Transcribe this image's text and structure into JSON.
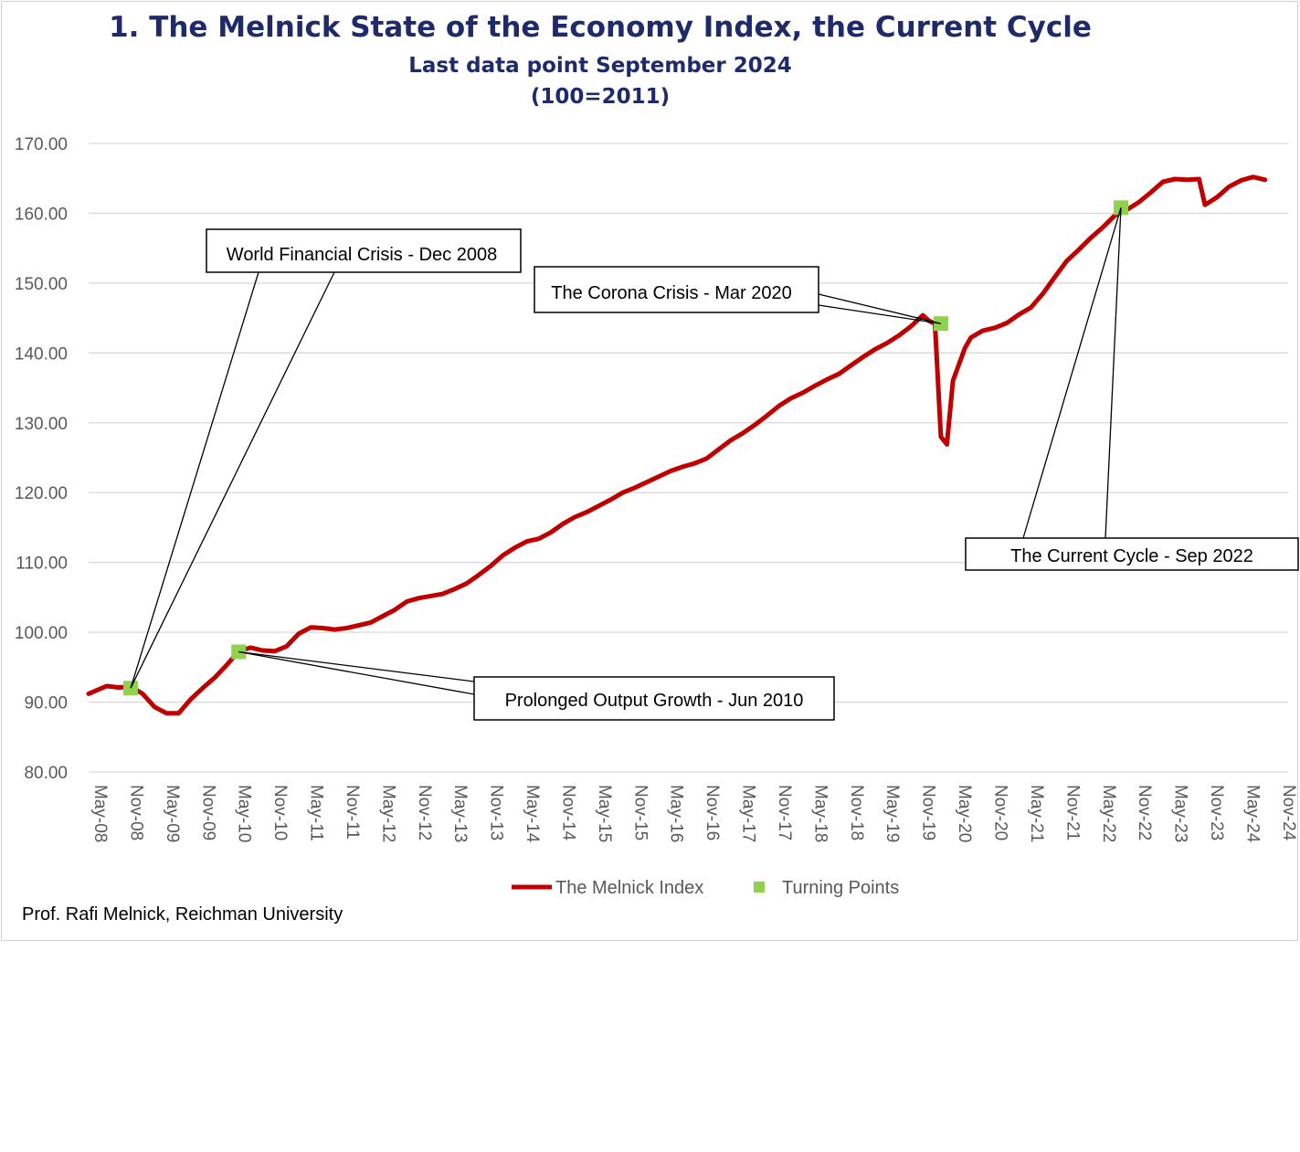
{
  "chart_data": {
    "type": "line",
    "title": "1.  The Melnick State of the Economy Index, the Current Cycle",
    "subtitle": "Last data point September 2024",
    "subtitle2": "(100=2011)",
    "credit": "Prof. Rafi Melnick, Reichman University",
    "ylim": [
      80,
      170
    ],
    "yticks": [
      "80.00",
      "90.00",
      "100.00",
      "110.00",
      "120.00",
      "130.00",
      "140.00",
      "150.00",
      "160.00",
      "170.00"
    ],
    "grid": true,
    "legend_position": "bottom",
    "colors": {
      "line": "#c00000",
      "turning": "#92d050",
      "title": "#1f2a6b"
    },
    "x_ticks": [
      "May-08",
      "Nov-08",
      "May-09",
      "Nov-09",
      "May-10",
      "Nov-10",
      "May-11",
      "Nov-11",
      "May-12",
      "Nov-12",
      "May-13",
      "Nov-13",
      "May-14",
      "Nov-14",
      "May-15",
      "Nov-15",
      "May-16",
      "Nov-16",
      "May-17",
      "Nov-17",
      "May-18",
      "Nov-18",
      "May-19",
      "Nov-19",
      "May-20",
      "Nov-20",
      "May-21",
      "Nov-21",
      "May-22",
      "Nov-22",
      "May-23",
      "Nov-23",
      "May-24",
      "Nov-24"
    ],
    "series": [
      {
        "name": "The Melnick Index",
        "points": [
          [
            "May-08",
            91.2
          ],
          [
            "Aug-08",
            92.3
          ],
          [
            "Oct-08",
            92.1
          ],
          [
            "Dec-08",
            92.2
          ],
          [
            "Feb-09",
            91.2
          ],
          [
            "Apr-09",
            89.3
          ],
          [
            "Jun-09",
            88.4
          ],
          [
            "Aug-09",
            88.4
          ],
          [
            "Oct-09",
            90.4
          ],
          [
            "Dec-09",
            92.0
          ],
          [
            "Feb-10",
            93.5
          ],
          [
            "Apr-10",
            95.3
          ],
          [
            "Jun-10",
            97.3
          ],
          [
            "Aug-10",
            97.8
          ],
          [
            "Oct-10",
            97.4
          ],
          [
            "Dec-10",
            97.3
          ],
          [
            "Feb-11",
            98.0
          ],
          [
            "Apr-11",
            99.8
          ],
          [
            "Jun-11",
            100.7
          ],
          [
            "Aug-11",
            100.6
          ],
          [
            "Oct-11",
            100.4
          ],
          [
            "Dec-11",
            100.6
          ],
          [
            "Feb-12",
            101.0
          ],
          [
            "Apr-12",
            101.4
          ],
          [
            "Jun-12",
            102.3
          ],
          [
            "Aug-12",
            103.2
          ],
          [
            "Oct-12",
            104.4
          ],
          [
            "Dec-12",
            104.9
          ],
          [
            "Feb-13",
            105.2
          ],
          [
            "Apr-13",
            105.5
          ],
          [
            "Jun-13",
            106.2
          ],
          [
            "Aug-13",
            107.0
          ],
          [
            "Oct-13",
            108.2
          ],
          [
            "Dec-13",
            109.5
          ],
          [
            "Feb-14",
            111.0
          ],
          [
            "Apr-14",
            112.1
          ],
          [
            "Jun-14",
            113.0
          ],
          [
            "Aug-14",
            113.4
          ],
          [
            "Oct-14",
            114.3
          ],
          [
            "Dec-14",
            115.5
          ],
          [
            "Feb-15",
            116.5
          ],
          [
            "Apr-15",
            117.2
          ],
          [
            "Jun-15",
            118.1
          ],
          [
            "Aug-15",
            119.0
          ],
          [
            "Oct-15",
            120.0
          ],
          [
            "Dec-15",
            120.7
          ],
          [
            "Feb-16",
            121.5
          ],
          [
            "Apr-16",
            122.3
          ],
          [
            "Jun-16",
            123.1
          ],
          [
            "Aug-16",
            123.7
          ],
          [
            "Oct-16",
            124.2
          ],
          [
            "Dec-16",
            124.9
          ],
          [
            "Feb-17",
            126.2
          ],
          [
            "Apr-17",
            127.5
          ],
          [
            "Jun-17",
            128.5
          ],
          [
            "Aug-17",
            129.7
          ],
          [
            "Oct-17",
            131.0
          ],
          [
            "Dec-17",
            132.4
          ],
          [
            "Feb-18",
            133.5
          ],
          [
            "Apr-18",
            134.3
          ],
          [
            "Jun-18",
            135.3
          ],
          [
            "Aug-18",
            136.2
          ],
          [
            "Oct-18",
            137.0
          ],
          [
            "Dec-18",
            138.2
          ],
          [
            "Feb-19",
            139.4
          ],
          [
            "Apr-19",
            140.5
          ],
          [
            "Jun-19",
            141.4
          ],
          [
            "Aug-19",
            142.5
          ],
          [
            "Oct-19",
            143.8
          ],
          [
            "Dec-19",
            145.4
          ],
          [
            "Jan-20",
            144.6
          ],
          [
            "Feb-20",
            144.2
          ],
          [
            "Mar-20",
            128.0
          ],
          [
            "Apr-20",
            126.9
          ],
          [
            "May-20",
            136.0
          ],
          [
            "Jul-20",
            140.7
          ],
          [
            "Aug-20",
            142.2
          ],
          [
            "Oct-20",
            143.2
          ],
          [
            "Dec-20",
            143.6
          ],
          [
            "Feb-21",
            144.3
          ],
          [
            "Apr-21",
            145.5
          ],
          [
            "Jun-21",
            146.5
          ],
          [
            "Aug-21",
            148.5
          ],
          [
            "Oct-21",
            150.9
          ],
          [
            "Dec-21",
            153.2
          ],
          [
            "Feb-22",
            154.8
          ],
          [
            "Apr-22",
            156.5
          ],
          [
            "Jun-22",
            158.0
          ],
          [
            "Aug-22",
            159.7
          ],
          [
            "Oct-22",
            160.5
          ],
          [
            "Dec-22",
            161.6
          ],
          [
            "Feb-23",
            163.0
          ],
          [
            "Apr-23",
            164.5
          ],
          [
            "Jun-23",
            164.9
          ],
          [
            "Aug-23",
            164.8
          ],
          [
            "Oct-23",
            164.9
          ],
          [
            "Nov-23",
            161.2
          ],
          [
            "Jan-24",
            162.3
          ],
          [
            "Mar-24",
            163.8
          ],
          [
            "May-24",
            164.7
          ],
          [
            "Jul-24",
            165.2
          ],
          [
            "Sep-24",
            164.8
          ]
        ]
      },
      {
        "name": "Turning Points",
        "points": [
          [
            "Dec-08",
            92.0
          ],
          [
            "Jun-10",
            97.2
          ],
          [
            "Mar-20",
            144.2
          ],
          [
            "Sep-22",
            160.8
          ]
        ]
      }
    ],
    "annotations": [
      {
        "text": "World Financial Crisis - Dec 2008",
        "target": "Dec-08"
      },
      {
        "text": "Prolonged Output Growth - Jun 2010",
        "target": "Jun-10"
      },
      {
        "text": "The Corona Crisis - Mar 2020",
        "target": "Mar-20"
      },
      {
        "text": "The Current Cycle - Sep 2022",
        "target": "Sep-22"
      }
    ]
  }
}
